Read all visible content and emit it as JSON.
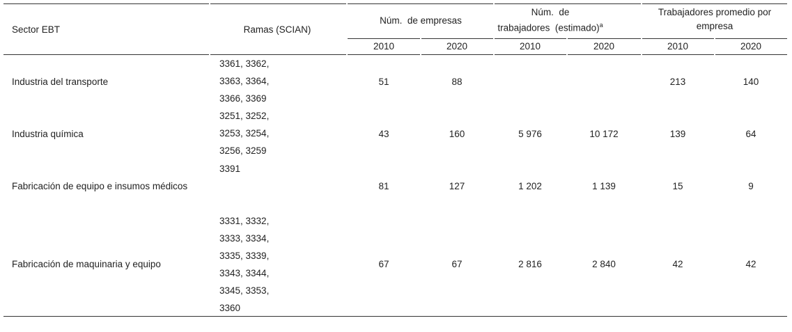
{
  "table": {
    "header": {
      "sector": "Sector EBT",
      "ramas": "Ramas (SCIAN)",
      "groups": [
        {
          "lines": [
            "Núm.  de empresas"
          ]
        },
        {
          "lines": [
            "Núm.  de",
            "trabajadores  (estimado)"
          ],
          "note": "a"
        },
        {
          "lines": [
            "Trabajadores promedio por",
            "empresa"
          ]
        }
      ],
      "years": [
        "2010",
        "2020",
        "2010",
        "2020",
        "2010",
        "2020"
      ]
    },
    "rows": [
      {
        "sector": "Industria del transporte",
        "ramas": [
          "3361, 3362,",
          "3363, 3364,",
          "3366, 3369"
        ],
        "values": [
          "51",
          "88",
          null,
          null,
          "213",
          "140"
        ]
      },
      {
        "sector": "Industria química",
        "ramas": [
          "3251, 3252,",
          "3253, 3254,",
          "3256, 3259"
        ],
        "values": [
          "43",
          "160",
          "5 976",
          "10 172",
          "139",
          "64"
        ]
      },
      {
        "sector": "Fabricación de equipo e insumos médicos",
        "ramas": [
          "3391"
        ],
        "values": [
          "81",
          "127",
          "1 202",
          "1 139",
          "15",
          "9"
        ]
      },
      {
        "sector": "Fabricación de maquinaria y equipo",
        "ramas": [
          "3331, 3332,",
          "3333, 3334,",
          "3335, 3339,",
          "3343, 3344,",
          "3345, 3353,",
          "3360"
        ],
        "values": [
          "67",
          "67",
          "2 816",
          "2 840",
          "42",
          "42"
        ]
      }
    ]
  }
}
